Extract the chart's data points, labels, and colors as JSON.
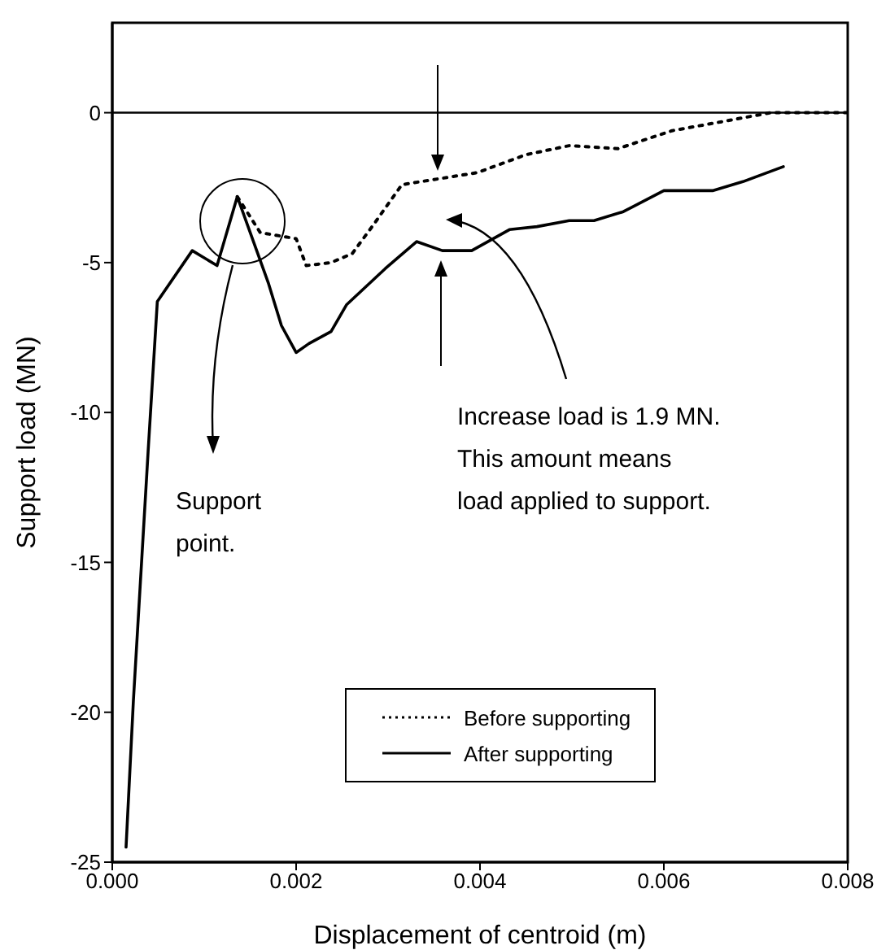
{
  "chart_data": {
    "type": "line",
    "xlabel": "Displacement of centroid (m)",
    "ylabel": "Support load (MN)",
    "xlim": [
      0,
      0.008
    ],
    "xticks": [
      {
        "value": 0,
        "label": "0.000"
      },
      {
        "value": 0.002,
        "label": "0.002"
      },
      {
        "value": 0.004,
        "label": "0.004"
      },
      {
        "value": 0.006,
        "label": "0.006"
      },
      {
        "value": 0.008,
        "label": "0.008"
      }
    ],
    "ylim": [
      -25,
      3
    ],
    "yticks": [
      -25,
      -20,
      -15,
      -10,
      -5,
      0
    ],
    "legend": "bottom right",
    "marker": "none",
    "ref_lines": [
      {
        "axis": "y",
        "value": 0,
        "color": "#000000",
        "line_style": "solid"
      }
    ],
    "annotations": [
      "Increase load is 1.9 MN.\nThis amount means\nload applied to support.",
      "Support\npoint."
    ],
    "series": [
      {
        "name": "Before supporting",
        "color": "#000000",
        "line_style": "dotted",
        "x": [
          0.00136,
          0.00161,
          0.002,
          0.00211,
          0.00238,
          0.00261,
          0.00285,
          0.00315,
          0.00356,
          0.00397,
          0.0045,
          0.00497,
          0.0055,
          0.00609,
          0.00663,
          0.00716,
          0.008
        ],
        "values": [
          -2.8,
          -4.0,
          -4.2,
          -5.1,
          -5.0,
          -4.7,
          -3.7,
          -2.4,
          -2.2,
          -2.0,
          -1.4,
          -1.1,
          -1.2,
          -0.6,
          -0.3,
          0,
          0
        ]
      },
      {
        "name": "After supporting",
        "color": "#000000",
        "line_style": "solid",
        "x": [
          0.00015,
          0.00023,
          0.00039,
          0.00049,
          0.00087,
          0.00114,
          0.00136,
          0.0017,
          0.00184,
          0.002,
          0.00214,
          0.00238,
          0.00255,
          0.00297,
          0.00331,
          0.00359,
          0.00391,
          0.00432,
          0.00462,
          0.00497,
          0.00524,
          0.00556,
          0.006,
          0.00621,
          0.00653,
          0.00686,
          0.0073
        ],
        "values": [
          -24.5,
          -19.6,
          -11.3,
          -6.3,
          -4.6,
          -5.1,
          -2.8,
          -5.7,
          -7.1,
          -8.0,
          -7.7,
          -7.3,
          -6.4,
          -5.2,
          -4.3,
          -4.6,
          -4.6,
          -3.9,
          -3.8,
          -3.6,
          -3.6,
          -3.3,
          -2.6,
          -2.6,
          -2.6,
          -2.3,
          -1.8
        ]
      }
    ]
  }
}
